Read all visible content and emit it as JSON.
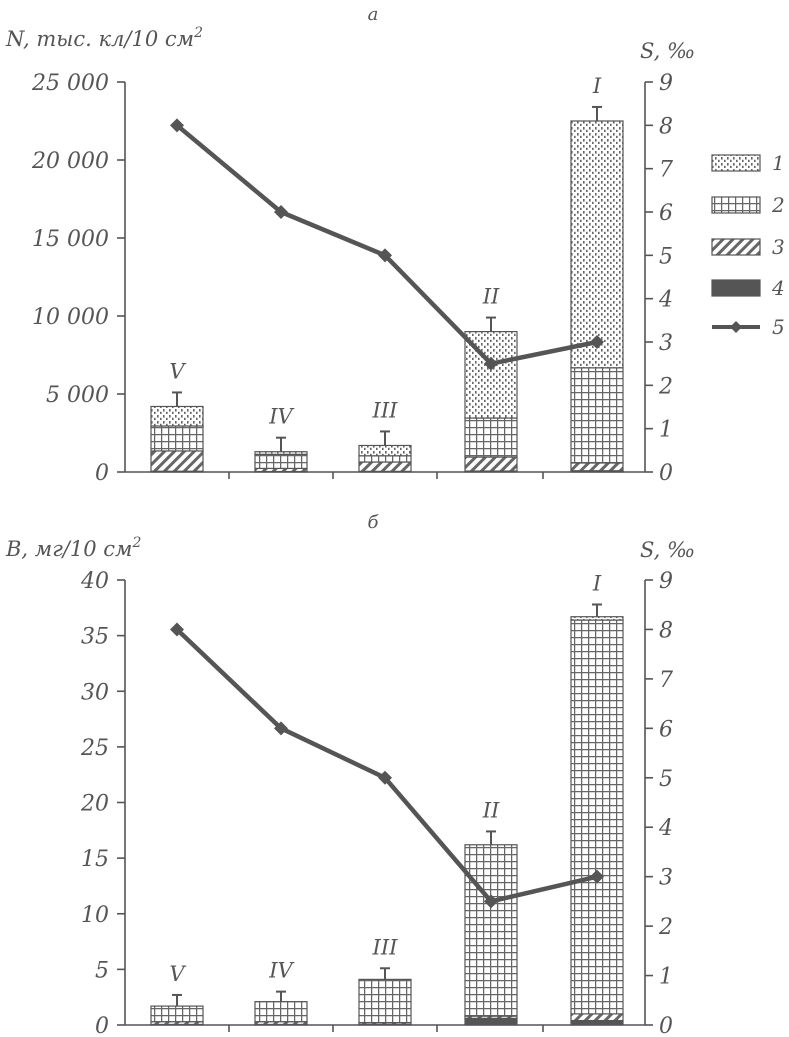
{
  "chart_data": [
    {
      "type": "bar",
      "panel_label": "а",
      "title": "",
      "ylabel": "N, тыс. кл/10 см",
      "ylabel_sup": "2",
      "y2label": "S, ‰",
      "ylim": [
        0,
        25000
      ],
      "y_ticks": [
        0,
        5000,
        10000,
        15000,
        20000,
        25000
      ],
      "y_tick_labels": [
        "0",
        "5 000",
        "10 000",
        "15 000",
        "20 000",
        "25 000"
      ],
      "y2lim": [
        0,
        9
      ],
      "y2_ticks": [
        0,
        1,
        2,
        3,
        4,
        5,
        6,
        7,
        8,
        9
      ],
      "y2_tick_labels": [
        "0",
        "1",
        "2",
        "3",
        "4",
        "5",
        "6",
        "7",
        "8",
        "9"
      ],
      "categories": [
        "V",
        "IV",
        "III",
        "II",
        "I"
      ],
      "stacked": true,
      "series": [
        {
          "name": "4",
          "pattern": "solid",
          "values": [
            50,
            30,
            40,
            60,
            80
          ]
        },
        {
          "name": "3",
          "pattern": "diagonal",
          "values": [
            1300,
            200,
            600,
            900,
            500
          ]
        },
        {
          "name": "2",
          "pattern": "grid",
          "values": [
            1600,
            900,
            400,
            2500,
            6100
          ]
        },
        {
          "name": "1",
          "pattern": "dots",
          "values": [
            1250,
            170,
            660,
            5540,
            15820
          ]
        }
      ],
      "error_top": [
        5100,
        2200,
        2600,
        9900,
        23400
      ],
      "line_series": {
        "name": "5",
        "axis": "right",
        "values": [
          8,
          6,
          5,
          2.5,
          3
        ]
      },
      "legend": {
        "placement": "right",
        "entries": [
          "1",
          "2",
          "3",
          "4",
          "5"
        ]
      }
    },
    {
      "type": "bar",
      "panel_label": "б",
      "title": "",
      "ylabel": "B, мг/10 см",
      "ylabel_sup": "2",
      "y2label": "S, ‰",
      "ylim": [
        0,
        40
      ],
      "y_ticks": [
        0,
        5,
        10,
        15,
        20,
        25,
        30,
        35,
        40
      ],
      "y_tick_labels": [
        "0",
        "5",
        "10",
        "15",
        "20",
        "25",
        "30",
        "35",
        "40"
      ],
      "y2lim": [
        0,
        9
      ],
      "y2_ticks": [
        0,
        1,
        2,
        3,
        4,
        5,
        6,
        7,
        8,
        9
      ],
      "y2_tick_labels": [
        "0",
        "1",
        "2",
        "3",
        "4",
        "5",
        "6",
        "7",
        "8",
        "9"
      ],
      "categories": [
        "V",
        "IV",
        "III",
        "II",
        "I"
      ],
      "stacked": true,
      "series": [
        {
          "name": "4",
          "pattern": "solid",
          "values": [
            0.05,
            0.05,
            0.05,
            0.6,
            0.4
          ]
        },
        {
          "name": "3",
          "pattern": "diagonal",
          "values": [
            0.25,
            0.25,
            0.15,
            0.2,
            0.6
          ]
        },
        {
          "name": "2",
          "pattern": "grid",
          "values": [
            1.4,
            1.8,
            3.9,
            15.4,
            35.4
          ]
        },
        {
          "name": "1",
          "pattern": "dots",
          "values": [
            0,
            0,
            0,
            0,
            0.3
          ]
        }
      ],
      "error_top": [
        2.7,
        3.0,
        5.1,
        17.4,
        37.8
      ],
      "line_series": {
        "name": "5",
        "axis": "right",
        "values": [
          8,
          6,
          5,
          2.5,
          3
        ]
      }
    }
  ]
}
